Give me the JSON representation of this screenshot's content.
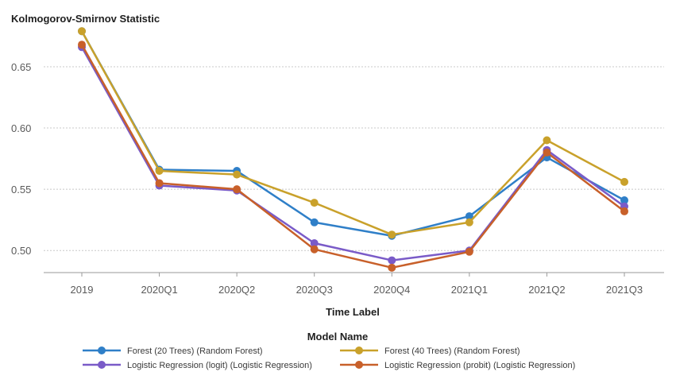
{
  "chart_data": {
    "type": "line",
    "title": "Kolmogorov-Smirnov Statistic",
    "xlabel": "Time Label",
    "ylabel": "",
    "categories": [
      "2019",
      "2020Q1",
      "2020Q2",
      "2020Q3",
      "2020Q4",
      "2021Q1",
      "2021Q2",
      "2021Q3"
    ],
    "ylim": [
      0.482,
      0.685
    ],
    "yticks": [
      0.5,
      0.55,
      0.6,
      0.65
    ],
    "ytick_labels": [
      "0.50",
      "0.55",
      "0.60",
      "0.65"
    ],
    "grid": true,
    "legend": {
      "title": "Model Name",
      "placement": "bottom"
    },
    "series": [
      {
        "name": "Forest (20 Trees) (Random Forest)",
        "color": "#2f7fc8",
        "values": [
          0.679,
          0.566,
          0.565,
          0.523,
          0.512,
          0.528,
          0.576,
          0.541
        ]
      },
      {
        "name": "Forest (40 Trees) (Random Forest)",
        "color": "#c9a12b",
        "values": [
          0.679,
          0.565,
          0.562,
          0.539,
          0.513,
          0.523,
          0.59,
          0.556
        ]
      },
      {
        "name": "Logistic Regression (logit) (Logistic Regression)",
        "color": "#7a5bc8",
        "values": [
          0.666,
          0.553,
          0.549,
          0.506,
          0.492,
          0.5,
          0.582,
          0.536
        ]
      },
      {
        "name": "Logistic Regression (probit) (Logistic Regression)",
        "color": "#c8602a",
        "values": [
          0.668,
          0.555,
          0.55,
          0.501,
          0.486,
          0.499,
          0.58,
          0.532
        ]
      }
    ]
  }
}
